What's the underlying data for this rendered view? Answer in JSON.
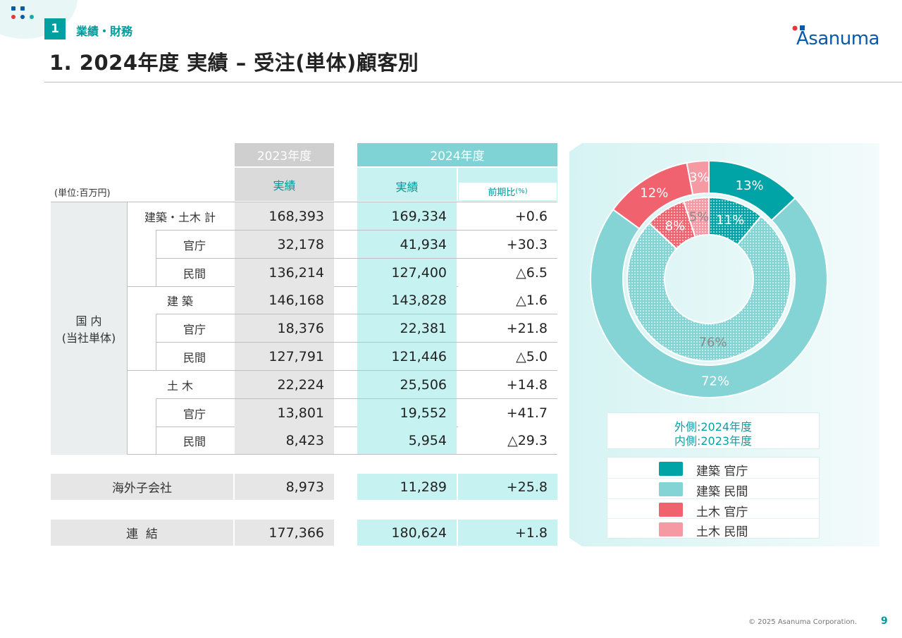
{
  "header": {
    "section_number": "1",
    "section_label": "業績・財務",
    "page_title": "1. 2024年度 実績 – 受注(単体)顧客別",
    "logo_text": "Asanuma"
  },
  "table": {
    "unit": "(単位:百万円)",
    "col_2023": "2023年度",
    "col_2024": "2024年度",
    "sub_actual": "実績",
    "sub_actual_2024": "実績",
    "sub_yoy": "前期比",
    "sub_yoy_unit": "(%)",
    "domestic_label_line1": "国 内",
    "domestic_label_line2": "(当社単体)",
    "rows": [
      {
        "label": "建築・土木 計",
        "v2023": "168,393",
        "v2024": "169,334",
        "yoy": "+0.6"
      },
      {
        "label": "官庁",
        "v2023": "32,178",
        "v2024": "41,934",
        "yoy": "+30.3"
      },
      {
        "label": "民間",
        "v2023": "136,214",
        "v2024": "127,400",
        "yoy": "△6.5"
      },
      {
        "label": "建 築",
        "v2023": "146,168",
        "v2024": "143,828",
        "yoy": "△1.6"
      },
      {
        "label": "官庁",
        "v2023": "18,376",
        "v2024": "22,381",
        "yoy": "+21.8"
      },
      {
        "label": "民間",
        "v2023": "127,791",
        "v2024": "121,446",
        "yoy": "△5.0"
      },
      {
        "label": "土 木",
        "v2023": "22,224",
        "v2024": "25,506",
        "yoy": "+14.8"
      },
      {
        "label": "官庁",
        "v2023": "13,801",
        "v2024": "19,552",
        "yoy": "+41.7"
      },
      {
        "label": "民間",
        "v2023": "8,423",
        "v2024": "5,954",
        "yoy": "△29.3"
      }
    ],
    "overseas": {
      "label": "海外子会社",
      "v2023": "8,973",
      "v2024": "11,289",
      "yoy": "+25.8"
    },
    "consolidated": {
      "label": "連  結",
      "v2023": "177,366",
      "v2024": "180,624",
      "yoy": "+1.8"
    }
  },
  "chart_data": {
    "type": "pie",
    "subtype": "nested-donut",
    "categories": [
      "建築 官庁",
      "建築 民間",
      "土木 官庁",
      "土木 民間"
    ],
    "series": [
      {
        "name": "外側:2024年度",
        "values": [
          13,
          72,
          12,
          3
        ],
        "labels": [
          "13%",
          "72%",
          "12%",
          "3%"
        ]
      },
      {
        "name": "内側:2023年度",
        "values": [
          11,
          76,
          8,
          5
        ],
        "labels": [
          "11%",
          "76%",
          "8%",
          "5%"
        ]
      }
    ],
    "colors": [
      "#00a4a6",
      "#84d3d5",
      "#f0626d",
      "#f59aa2"
    ],
    "note_outer": "外側:2024年度",
    "note_inner": "内側:2023年度",
    "legend": [
      "建築 官庁",
      "建築 民間",
      "土木 官庁",
      "土木 民間"
    ]
  },
  "footer": {
    "copyright": "© 2025 Asanuma Corporation.",
    "page_number": "9"
  }
}
